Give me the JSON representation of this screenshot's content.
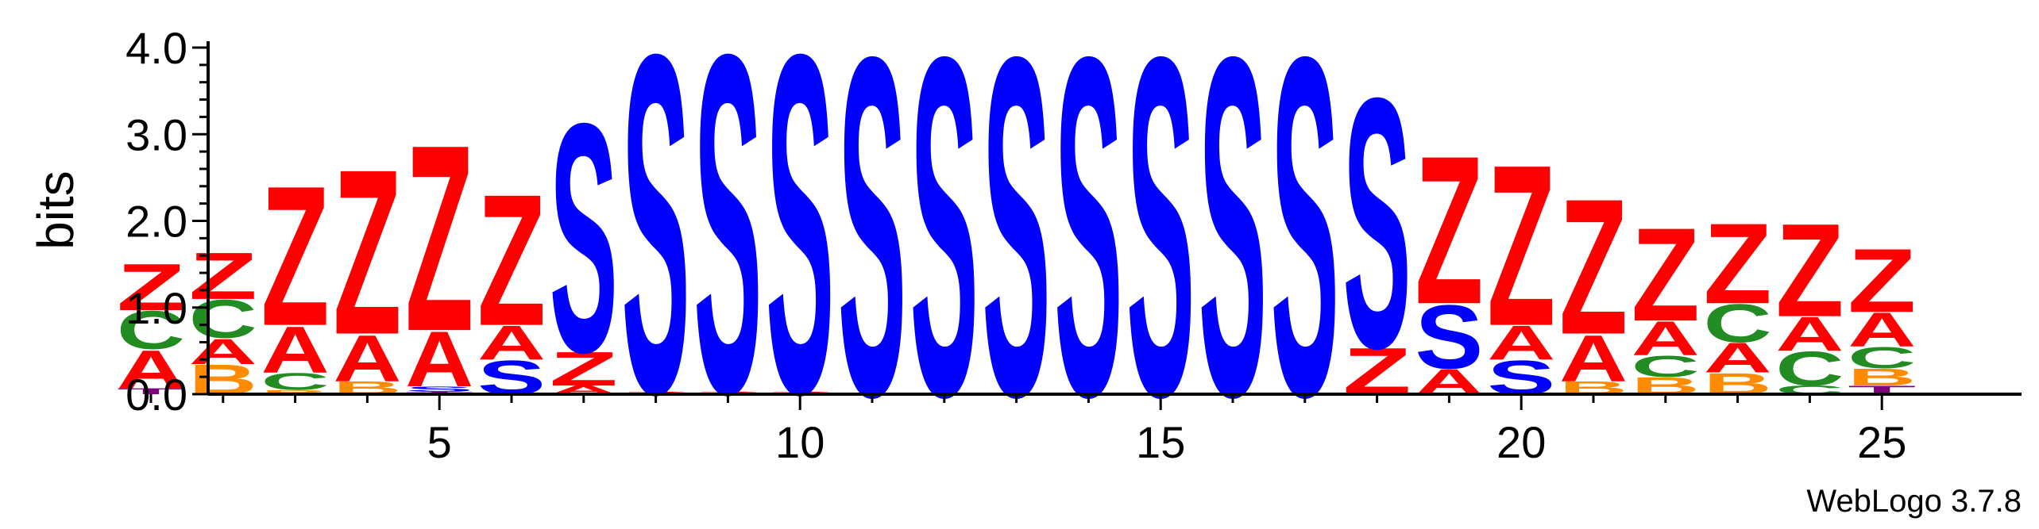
{
  "chart_data": {
    "type": "sequence-logo",
    "ylabel": "bits",
    "ylim": [
      0,
      4.0
    ],
    "y_ticks": [
      "0.0",
      "1.0",
      "2.0",
      "3.0",
      "4.0"
    ],
    "x_ticks": [
      "5",
      "10",
      "15",
      "20",
      "25"
    ],
    "x_range": [
      1,
      25
    ],
    "credit": "WebLogo 3.7.8",
    "colors": {
      "Z": "#ff0000",
      "A": "#ff0000",
      "C": "#228b22",
      "B": "#ff8c00",
      "S": "#0000ff",
      "T": "#800080"
    },
    "positions": [
      {
        "pos": 1,
        "stack": [
          {
            "letter": "T",
            "h": 0.07
          },
          {
            "letter": "A",
            "h": 0.45
          },
          {
            "letter": "C",
            "h": 0.45
          },
          {
            "letter": "Z",
            "h": 0.55
          }
        ]
      },
      {
        "pos": 2,
        "stack": [
          {
            "letter": "B",
            "h": 0.35
          },
          {
            "letter": "A",
            "h": 0.3
          },
          {
            "letter": "C",
            "h": 0.45
          },
          {
            "letter": "Z",
            "h": 0.55
          }
        ]
      },
      {
        "pos": 3,
        "stack": [
          {
            "letter": "B",
            "h": 0.05
          },
          {
            "letter": "C",
            "h": 0.2
          },
          {
            "letter": "A",
            "h": 0.55
          },
          {
            "letter": "Z",
            "h": 1.65
          }
        ]
      },
      {
        "pos": 4,
        "stack": [
          {
            "letter": "B",
            "h": 0.15
          },
          {
            "letter": "A",
            "h": 0.55
          },
          {
            "letter": "Z",
            "h": 1.95
          }
        ]
      },
      {
        "pos": 5,
        "stack": [
          {
            "letter": "T",
            "h": 0.03
          },
          {
            "letter": "S",
            "h": 0.06
          },
          {
            "letter": "A",
            "h": 0.65
          },
          {
            "letter": "Z",
            "h": 2.2
          }
        ]
      },
      {
        "pos": 6,
        "stack": [
          {
            "letter": "S",
            "h": 0.4
          },
          {
            "letter": "A",
            "h": 0.4
          },
          {
            "letter": "Z",
            "h": 1.55
          }
        ]
      },
      {
        "pos": 7,
        "stack": [
          {
            "letter": "A",
            "h": 0.1
          },
          {
            "letter": "Z",
            "h": 0.4
          },
          {
            "letter": "S",
            "h": 2.7
          }
        ]
      },
      {
        "pos": 8,
        "stack": [
          {
            "letter": "Z",
            "h": 0.03
          },
          {
            "letter": "S",
            "h": 4.0
          }
        ]
      },
      {
        "pos": 9,
        "stack": [
          {
            "letter": "Z",
            "h": 0.03
          },
          {
            "letter": "S",
            "h": 4.0
          }
        ]
      },
      {
        "pos": 10,
        "stack": [
          {
            "letter": "Z",
            "h": 0.03
          },
          {
            "letter": "S",
            "h": 4.0
          }
        ]
      },
      {
        "pos": 11,
        "stack": [
          {
            "letter": "S",
            "h": 4.0
          }
        ]
      },
      {
        "pos": 12,
        "stack": [
          {
            "letter": "S",
            "h": 4.0
          }
        ]
      },
      {
        "pos": 13,
        "stack": [
          {
            "letter": "S",
            "h": 4.0
          }
        ]
      },
      {
        "pos": 14,
        "stack": [
          {
            "letter": "S",
            "h": 4.0
          }
        ]
      },
      {
        "pos": 15,
        "stack": [
          {
            "letter": "S",
            "h": 4.0
          }
        ]
      },
      {
        "pos": 16,
        "stack": [
          {
            "letter": "S",
            "h": 4.0
          }
        ]
      },
      {
        "pos": 17,
        "stack": [
          {
            "letter": "S",
            "h": 4.0
          }
        ]
      },
      {
        "pos": 18,
        "stack": [
          {
            "letter": "Z",
            "h": 0.55
          },
          {
            "letter": "S",
            "h": 2.95
          }
        ]
      },
      {
        "pos": 19,
        "stack": [
          {
            "letter": "A",
            "h": 0.3
          },
          {
            "letter": "S",
            "h": 0.75
          },
          {
            "letter": "Z",
            "h": 1.75
          }
        ]
      },
      {
        "pos": 20,
        "stack": [
          {
            "letter": "S",
            "h": 0.4
          },
          {
            "letter": "A",
            "h": 0.4
          },
          {
            "letter": "Z",
            "h": 1.9
          }
        ]
      },
      {
        "pos": 21,
        "stack": [
          {
            "letter": "B",
            "h": 0.15
          },
          {
            "letter": "A",
            "h": 0.55
          },
          {
            "letter": "Z",
            "h": 1.6
          }
        ]
      },
      {
        "pos": 22,
        "stack": [
          {
            "letter": "B",
            "h": 0.2
          },
          {
            "letter": "C",
            "h": 0.25
          },
          {
            "letter": "A",
            "h": 0.4
          },
          {
            "letter": "Z",
            "h": 1.1
          }
        ]
      },
      {
        "pos": 23,
        "stack": [
          {
            "letter": "B",
            "h": 0.25
          },
          {
            "letter": "A",
            "h": 0.35
          },
          {
            "letter": "C",
            "h": 0.45
          },
          {
            "letter": "Z",
            "h": 0.95
          }
        ]
      },
      {
        "pos": 24,
        "stack": [
          {
            "letter": "C",
            "h": 0.1
          },
          {
            "letter": "C",
            "h": 0.4
          },
          {
            "letter": "A",
            "h": 0.4
          },
          {
            "letter": "Z",
            "h": 1.1
          }
        ]
      },
      {
        "pos": 25,
        "stack": [
          {
            "letter": "T",
            "h": 0.1
          },
          {
            "letter": "B",
            "h": 0.2
          },
          {
            "letter": "C",
            "h": 0.25
          },
          {
            "letter": "A",
            "h": 0.4
          },
          {
            "letter": "Z",
            "h": 0.75
          }
        ]
      }
    ]
  }
}
